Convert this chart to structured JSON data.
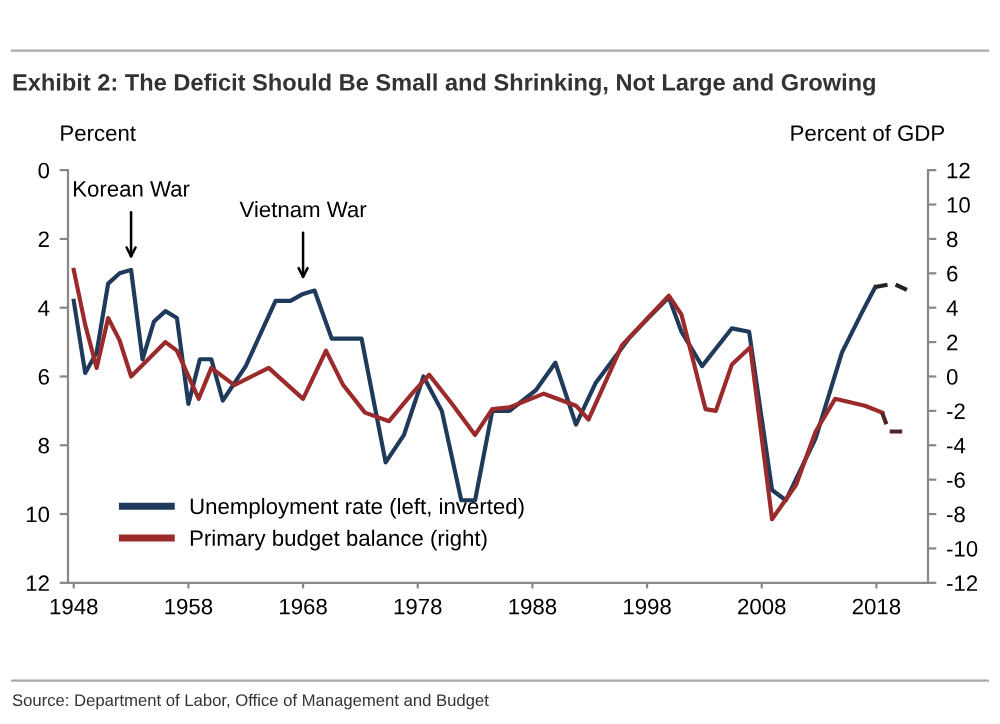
{
  "chart_data": {
    "type": "line",
    "title": "Exhibit 2: The Deficit Should Be Small and Shrinking, Not Large and Growing",
    "ylabel": "Percent",
    "y2label": "Percent of GDP",
    "xlim": [
      1947.5,
      2022.5
    ],
    "xticks": [
      1948,
      1958,
      1968,
      1978,
      1988,
      1998,
      2008,
      2018
    ],
    "ylim": [
      12,
      0
    ],
    "yticks": [
      0,
      2,
      4,
      6,
      8,
      10,
      12
    ],
    "y2lim": [
      -12,
      12
    ],
    "y2ticks": [
      -12,
      -10,
      -8,
      -6,
      -4,
      -2,
      0,
      2,
      4,
      6,
      8,
      10,
      12
    ],
    "grid": false,
    "legend": "bottom left",
    "marker": "none",
    "series": [
      {
        "name": "Unemployment rate (left, inverted)",
        "color": "#1f3a5a",
        "line_style": "solid",
        "x": [
          1948,
          1949,
          1950,
          1951,
          1952,
          1953,
          1954,
          1955,
          1956,
          1957,
          1958,
          1959,
          1960,
          1961,
          1963,
          1965.6,
          1966.9,
          1968,
          1969,
          1970.5,
          1973.1,
          1975.2,
          1976.8,
          1978.5,
          1980.1,
          1981.8,
          1983,
          1984.5,
          1986,
          1988.3,
          1990,
          1991.8,
          1993.5,
          1996.4,
          1998.1,
          1999.9,
          2001,
          2002.8,
          2005.4,
          2006.9,
          2008.9,
          2010.1,
          2012.7,
          2015,
          2016.8,
          2017.9
        ],
        "values": [
          3.8,
          5.9,
          5.3,
          3.3,
          3.0,
          2.9,
          5.5,
          4.4,
          4.1,
          4.3,
          6.8,
          5.5,
          5.5,
          6.7,
          5.7,
          3.8,
          3.8,
          3.6,
          3.5,
          4.9,
          4.9,
          8.5,
          7.7,
          6.0,
          7.0,
          9.6,
          9.6,
          7.0,
          7.0,
          6.4,
          5.6,
          7.4,
          6.2,
          4.9,
          4.3,
          3.7,
          4.7,
          5.7,
          4.6,
          4.7,
          9.3,
          9.6,
          7.8,
          5.3,
          4.1,
          3.4
        ]
      },
      {
        "color": "#222222",
        "line_style": "dashed",
        "x": [
          2017.9,
          2019.5,
          2020.8
        ],
        "values": [
          3.4,
          3.3,
          3.5
        ]
      },
      {
        "name": "Primary budget balance (right)",
        "color": "#9b2a2a",
        "axis": "y2",
        "line_style": "solid",
        "x": [
          1948,
          1949,
          1950,
          1951,
          1952,
          1953,
          1956,
          1957,
          1958.9,
          1960,
          1962,
          1965,
          1968,
          1970,
          1971.5,
          1973.4,
          1975.5,
          1977.5,
          1979,
          1981,
          1983,
          1984.5,
          1986,
          1989,
          1991.8,
          1992.9,
          1995.8,
          1999.9,
          2001,
          2003.1,
          2004,
          2005.4,
          2007,
          2008.9,
          2011,
          2012.7,
          2014.4,
          2017,
          2018.5
        ],
        "values": [
          6.2,
          3.0,
          0.5,
          3.4,
          2.1,
          0,
          2.0,
          1.5,
          -1.3,
          0.5,
          -0.5,
          0.5,
          -1.3,
          1.5,
          -0.5,
          -2.1,
          -2.6,
          -1.0,
          0.1,
          -1.6,
          -3.4,
          -1.9,
          -1.8,
          -1.0,
          -1.7,
          -2.5,
          1.8,
          4.7,
          3.6,
          -1.9,
          -2.0,
          0.7,
          1.7,
          -8.3,
          -6.3,
          -3.2,
          -1.3,
          -1.7,
          -2.1
        ]
      },
      {
        "color": "#4e2626",
        "axis": "y2",
        "line_style": "dashed",
        "x": [
          2018.5,
          2019.1,
          2020.6
        ],
        "values": [
          -2.1,
          -3.2,
          -3.2
        ]
      }
    ],
    "annotations": [
      {
        "text": "Korean War",
        "x": 1953,
        "y": 2.9
      },
      {
        "text": "Vietnam War",
        "x": 1968,
        "y": 3.5
      },
      "Source: Department of Labor, Office of Management and Budget"
    ]
  }
}
